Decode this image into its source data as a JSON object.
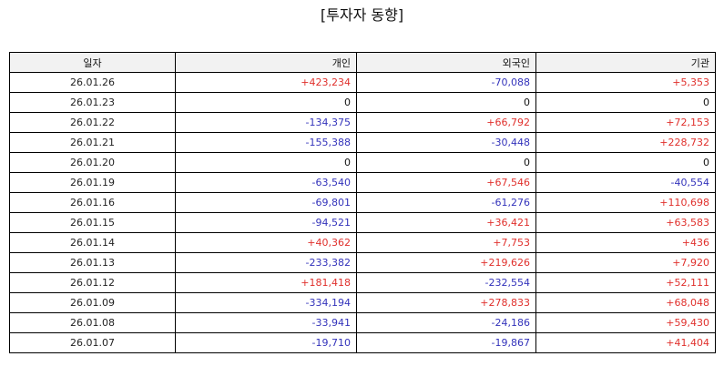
{
  "title": "[투자자 동향]",
  "headers": [
    "일자",
    "개인",
    "외국인",
    "기관"
  ],
  "colors": {
    "positive": "#e0302c",
    "negative": "#3333bb",
    "neutral": "#111111",
    "header_bg": "#f2f2f2"
  },
  "rows": [
    {
      "date": "26.01.26",
      "individual": "+423,234",
      "foreign": "-70,088",
      "institution": "+5,353"
    },
    {
      "date": "26.01.23",
      "individual": "0",
      "foreign": "0",
      "institution": "0"
    },
    {
      "date": "26.01.22",
      "individual": "-134,375",
      "foreign": "+66,792",
      "institution": "+72,153"
    },
    {
      "date": "26.01.21",
      "individual": "-155,388",
      "foreign": "-30,448",
      "institution": "+228,732"
    },
    {
      "date": "26.01.20",
      "individual": "0",
      "foreign": "0",
      "institution": "0"
    },
    {
      "date": "26.01.19",
      "individual": "-63,540",
      "foreign": "+67,546",
      "institution": "-40,554"
    },
    {
      "date": "26.01.16",
      "individual": "-69,801",
      "foreign": "-61,276",
      "institution": "+110,698"
    },
    {
      "date": "26.01.15",
      "individual": "-94,521",
      "foreign": "+36,421",
      "institution": "+63,583"
    },
    {
      "date": "26.01.14",
      "individual": "+40,362",
      "foreign": "+7,753",
      "institution": "+436"
    },
    {
      "date": "26.01.13",
      "individual": "-233,382",
      "foreign": "+219,626",
      "institution": "+7,920"
    },
    {
      "date": "26.01.12",
      "individual": "+181,418",
      "foreign": "-232,554",
      "institution": "+52,111"
    },
    {
      "date": "26.01.09",
      "individual": "-334,194",
      "foreign": "+278,833",
      "institution": "+68,048"
    },
    {
      "date": "26.01.08",
      "individual": "-33,941",
      "foreign": "-24,186",
      "institution": "+59,430"
    },
    {
      "date": "26.01.07",
      "individual": "-19,710",
      "foreign": "-19,867",
      "institution": "+41,404"
    }
  ]
}
